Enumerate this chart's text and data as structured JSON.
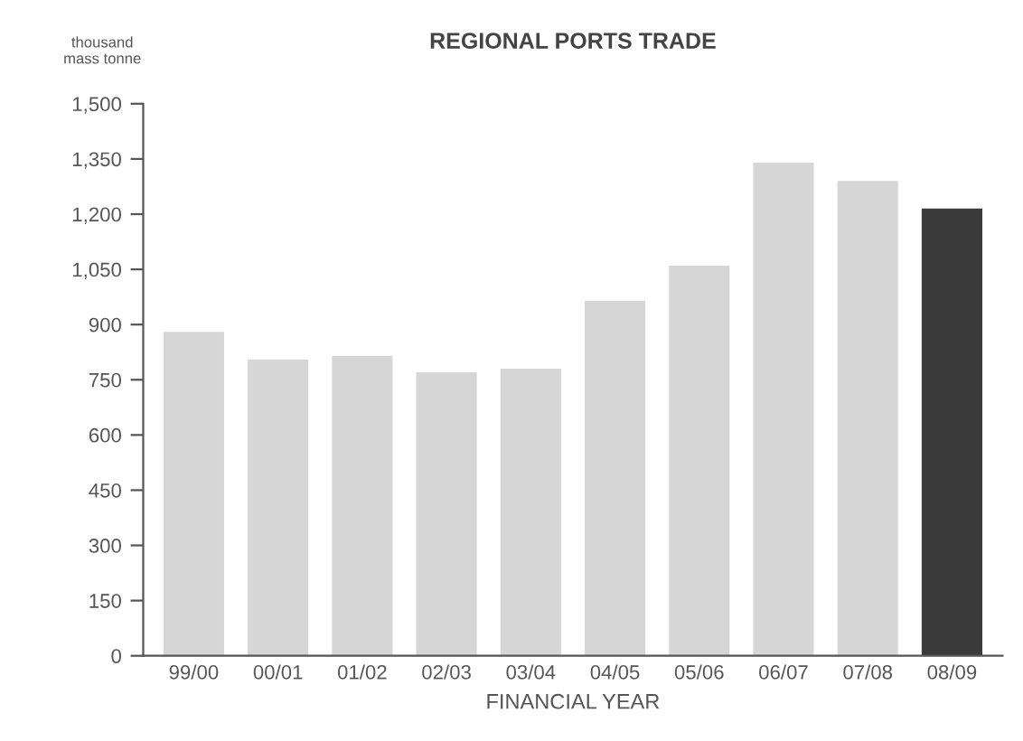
{
  "chart_data": {
    "type": "bar",
    "title": "REGIONAL PORTS TRADE",
    "xlabel": "FINANCIAL YEAR",
    "ylabel": "thousand\nmass tonne",
    "categories": [
      "99/00",
      "00/01",
      "01/02",
      "02/03",
      "03/04",
      "04/05",
      "05/06",
      "06/07",
      "07/08",
      "08/09"
    ],
    "values": [
      880,
      805,
      815,
      770,
      780,
      965,
      1060,
      1340,
      1290,
      1215
    ],
    "colors": [
      "#d6d6d6",
      "#d6d6d6",
      "#d6d6d6",
      "#d6d6d6",
      "#d6d6d6",
      "#d6d6d6",
      "#d6d6d6",
      "#d6d6d6",
      "#d6d6d6",
      "#3a3a3a"
    ],
    "ylim": [
      0,
      1500
    ],
    "yticks": [
      0,
      {
        "value": 150,
        "label": "150"
      },
      {
        "value": 300,
        "label": "300"
      },
      {
        "value": 450,
        "label": "450"
      },
      {
        "value": 600,
        "label": "600"
      },
      {
        "value": 750,
        "label": "750"
      },
      {
        "value": 900,
        "label": "900"
      },
      {
        "value": 1050,
        "label": "1,050"
      },
      {
        "value": 1200,
        "label": "1,200"
      },
      {
        "value": 1350,
        "label": "1,350"
      },
      {
        "value": 1500,
        "label": "1,500"
      }
    ],
    "grid": false,
    "legend": false
  }
}
